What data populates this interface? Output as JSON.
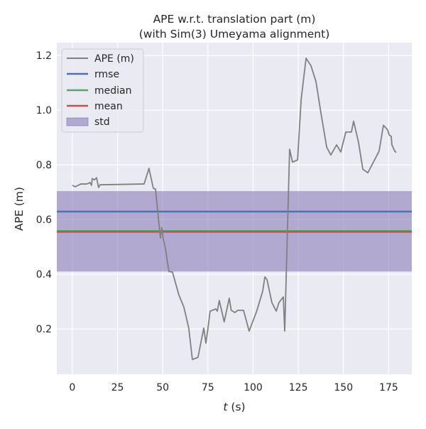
{
  "chart_data": {
    "type": "line",
    "title": "APE w.r.t. translation part (m)",
    "subtitle": "(with Sim(3) Umeyama alignment)",
    "xlabel_italic": "t",
    "xlabel_rest": " (s)",
    "ylabel": "APE (m)",
    "xlim": [
      -8.6,
      187.8
    ],
    "ylim": [
      0.034,
      1.247
    ],
    "xticks": [
      0,
      25,
      50,
      75,
      100,
      125,
      150,
      175
    ],
    "yticks": [
      0.2,
      0.4,
      0.6,
      0.8,
      1.0,
      1.2
    ],
    "ytick_labels": [
      "0.2",
      "0.4",
      "0.6",
      "0.8",
      "1.0",
      "1.2"
    ],
    "grid": true,
    "legend_position": "top-left",
    "colors": {
      "ape": "#808080",
      "rmse": "#4c72b0",
      "median": "#55a868",
      "mean": "#c44e52",
      "std": "#8172b2",
      "background": "#eaeaf2"
    },
    "legend": [
      "APE (m)",
      "rmse",
      "median",
      "mean",
      "std"
    ],
    "stats": {
      "rmse": 0.629,
      "median": 0.558,
      "mean": 0.555,
      "std_low": 0.41,
      "std_high": 0.704
    },
    "series": [
      {
        "name": "APE (m)",
        "x": [
          0,
          1.6,
          4.7,
          7.9,
          9.8,
          10.6,
          11,
          12.2,
          13.4,
          14.5,
          15.3,
          38.5,
          39.7,
          42.4,
          44.8,
          46,
          48.7,
          49.5,
          50.3,
          51.5,
          53.4,
          55.4,
          58.9,
          61.7,
          64.4,
          66.4,
          69.5,
          72.7,
          73.9,
          75,
          76.2,
          79.4,
          80.2,
          81.3,
          84,
          86.8,
          87.9,
          89.9,
          91.5,
          94.7,
          97.8,
          102,
          105.3,
          106.5,
          107.7,
          110.4,
          112.8,
          114.3,
          116.7,
          117.5,
          120.2,
          121.8,
          124.6,
          126.6,
          129.3,
          132,
          134.8,
          137.6,
          140.7,
          143,
          146.2,
          148.5,
          151.3,
          154.4,
          155.6,
          158.3,
          160.7,
          163.5,
          169.7,
          172.1,
          174.5,
          175.3,
          176.4,
          176.8,
          178.4,
          179.2
        ],
        "y": [
          0.725,
          0.72,
          0.73,
          0.73,
          0.735,
          0.725,
          0.75,
          0.745,
          0.753,
          0.717,
          0.727,
          0.73,
          0.73,
          0.787,
          0.714,
          0.712,
          0.532,
          0.571,
          0.527,
          0.494,
          0.41,
          0.408,
          0.325,
          0.28,
          0.203,
          0.088,
          0.096,
          0.203,
          0.148,
          0.2,
          0.265,
          0.273,
          0.265,
          0.304,
          0.226,
          0.312,
          0.268,
          0.26,
          0.268,
          0.268,
          0.192,
          0.265,
          0.338,
          0.39,
          0.38,
          0.296,
          0.265,
          0.296,
          0.317,
          0.192,
          0.857,
          0.81,
          0.818,
          1.04,
          1.19,
          1.163,
          1.104,
          0.987,
          0.865,
          0.836,
          0.873,
          0.847,
          0.92,
          0.92,
          0.96,
          0.883,
          0.784,
          0.771,
          0.85,
          0.945,
          0.927,
          0.909,
          0.904,
          0.873,
          0.85,
          0.845
        ]
      }
    ]
  }
}
